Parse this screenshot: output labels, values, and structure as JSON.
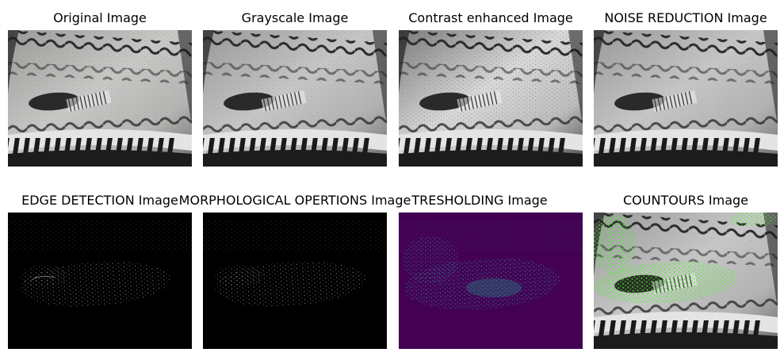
{
  "panels": [
    {
      "title": "Original Image"
    },
    {
      "title": "Grayscale Image"
    },
    {
      "title": "Contrast enhanced Image"
    },
    {
      "title": "NOISE REDUCTION Image"
    },
    {
      "title": "EDGE DETECTION Image"
    },
    {
      "title": "MORPHOLOGICAL OPERTIONS Image"
    },
    {
      "title": "TRESHOLDING Image"
    },
    {
      "title": "COUNTOURS Image"
    }
  ],
  "colors": {
    "background": "#ffffff",
    "threshold_background": "#440154",
    "threshold_mid": "#3b528b",
    "threshold_high": "#21918c",
    "threshold_peak": "#5ec962",
    "contour": "#39ff14"
  }
}
